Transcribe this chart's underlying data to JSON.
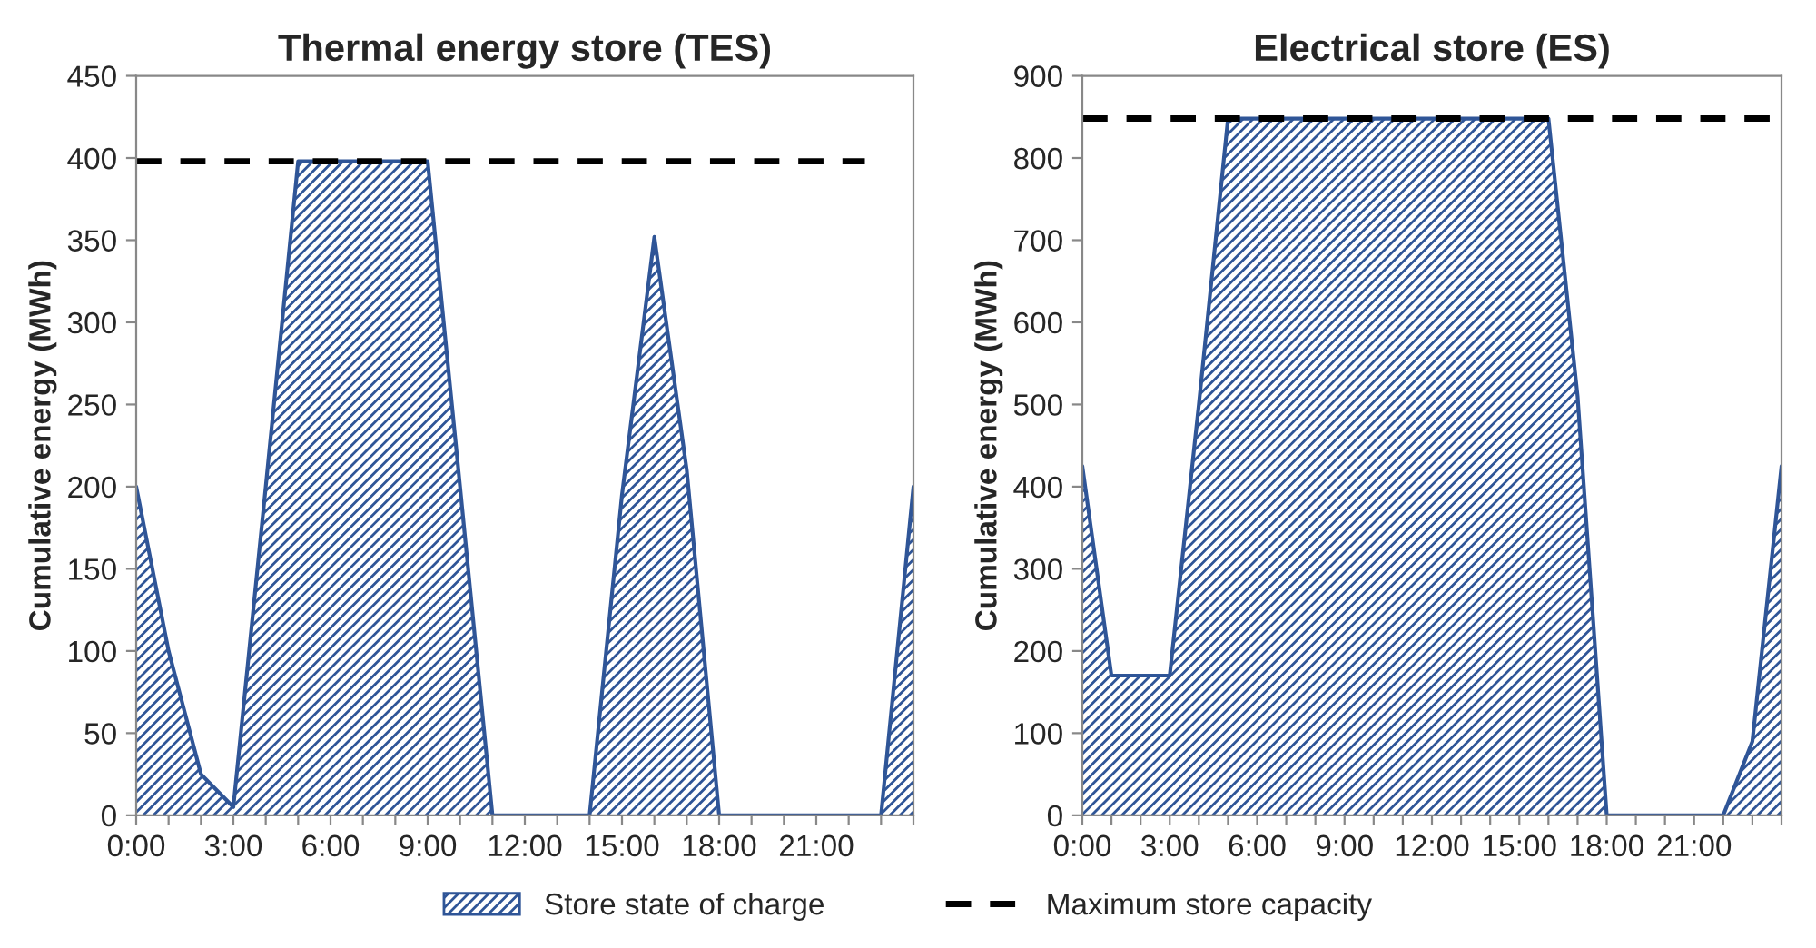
{
  "chart_data": [
    {
      "type": "area",
      "title": "Thermal energy store (TES)",
      "ylabel": "Cumulative energy (MWh)",
      "xlim": [
        0,
        24
      ],
      "ylim": [
        0,
        450
      ],
      "yticks": [
        0,
        50,
        100,
        150,
        200,
        250,
        300,
        350,
        400,
        450
      ],
      "xticks": [
        {
          "value": 0,
          "label": "0:00"
        },
        {
          "value": 1,
          "label": null
        },
        {
          "value": 2,
          "label": null
        },
        {
          "value": 3,
          "label": "3:00"
        },
        {
          "value": 4,
          "label": null
        },
        {
          "value": 5,
          "label": null
        },
        {
          "value": 6,
          "label": "6:00"
        },
        {
          "value": 7,
          "label": null
        },
        {
          "value": 8,
          "label": null
        },
        {
          "value": 9,
          "label": "9:00"
        },
        {
          "value": 10,
          "label": null
        },
        {
          "value": 11,
          "label": null
        },
        {
          "value": 12,
          "label": "12:00"
        },
        {
          "value": 13,
          "label": null
        },
        {
          "value": 14,
          "label": null
        },
        {
          "value": 15,
          "label": "15:00"
        },
        {
          "value": 16,
          "label": null
        },
        {
          "value": 17,
          "label": null
        },
        {
          "value": 18,
          "label": "18:00"
        },
        {
          "value": 19,
          "label": null
        },
        {
          "value": 20,
          "label": null
        },
        {
          "value": 21,
          "label": "21:00"
        },
        {
          "value": 22,
          "label": null
        },
        {
          "value": 23,
          "label": null
        },
        {
          "value": 24,
          "label": null
        }
      ],
      "grid": false,
      "legend": "bottom",
      "series": [
        {
          "name": "Store state of charge",
          "color": "#2f5597",
          "x": [
            0,
            1,
            2,
            3,
            4,
            5,
            6,
            7,
            8,
            9,
            10,
            11,
            12,
            13,
            14,
            15,
            16,
            17,
            18,
            19,
            20,
            21,
            22,
            23,
            24
          ],
          "values": [
            200,
            100,
            25,
            5,
            200,
            398,
            398,
            398,
            398,
            398,
            200,
            0,
            0,
            0,
            0,
            195,
            352,
            210,
            0,
            0,
            0,
            0,
            0,
            0,
            200
          ]
        },
        {
          "name": "Maximum store capacity",
          "type": "line",
          "line_style": "dashed",
          "color": "#000000",
          "x": [
            0,
            22.5
          ],
          "values": [
            398,
            398
          ]
        }
      ]
    },
    {
      "type": "area",
      "title": "Electrical store (ES)",
      "ylabel": "Cumulative energy (MWh)",
      "xlim": [
        0,
        24
      ],
      "ylim": [
        0,
        900
      ],
      "yticks": [
        0,
        100,
        200,
        300,
        400,
        500,
        600,
        700,
        800,
        900
      ],
      "xticks": [
        {
          "value": 0,
          "label": "0:00"
        },
        {
          "value": 1,
          "label": null
        },
        {
          "value": 2,
          "label": null
        },
        {
          "value": 3,
          "label": "3:00"
        },
        {
          "value": 4,
          "label": null
        },
        {
          "value": 5,
          "label": null
        },
        {
          "value": 6,
          "label": "6:00"
        },
        {
          "value": 7,
          "label": null
        },
        {
          "value": 8,
          "label": null
        },
        {
          "value": 9,
          "label": "9:00"
        },
        {
          "value": 10,
          "label": null
        },
        {
          "value": 11,
          "label": null
        },
        {
          "value": 12,
          "label": "12:00"
        },
        {
          "value": 13,
          "label": null
        },
        {
          "value": 14,
          "label": null
        },
        {
          "value": 15,
          "label": "15:00"
        },
        {
          "value": 16,
          "label": null
        },
        {
          "value": 17,
          "label": null
        },
        {
          "value": 18,
          "label": "18:00"
        },
        {
          "value": 19,
          "label": null
        },
        {
          "value": 20,
          "label": null
        },
        {
          "value": 21,
          "label": "21:00"
        },
        {
          "value": 22,
          "label": null
        },
        {
          "value": 23,
          "label": null
        },
        {
          "value": 24,
          "label": null
        }
      ],
      "grid": false,
      "series": [
        {
          "color": "#2f5597",
          "x": [
            0,
            1,
            2,
            3,
            4,
            5,
            6,
            7,
            8,
            9,
            10,
            11,
            12,
            13,
            14,
            15,
            16,
            17,
            18,
            19,
            20,
            21,
            22,
            23,
            24
          ],
          "values": [
            425,
            170,
            170,
            170,
            500,
            848,
            848,
            848,
            848,
            848,
            848,
            848,
            848,
            848,
            848,
            848,
            848,
            510,
            0,
            0,
            0,
            0,
            0,
            90,
            425
          ]
        },
        {
          "type": "line",
          "line_style": "dashed",
          "color": "#000000",
          "x": [
            0,
            24
          ],
          "values": [
            848,
            848
          ]
        }
      ]
    }
  ]
}
